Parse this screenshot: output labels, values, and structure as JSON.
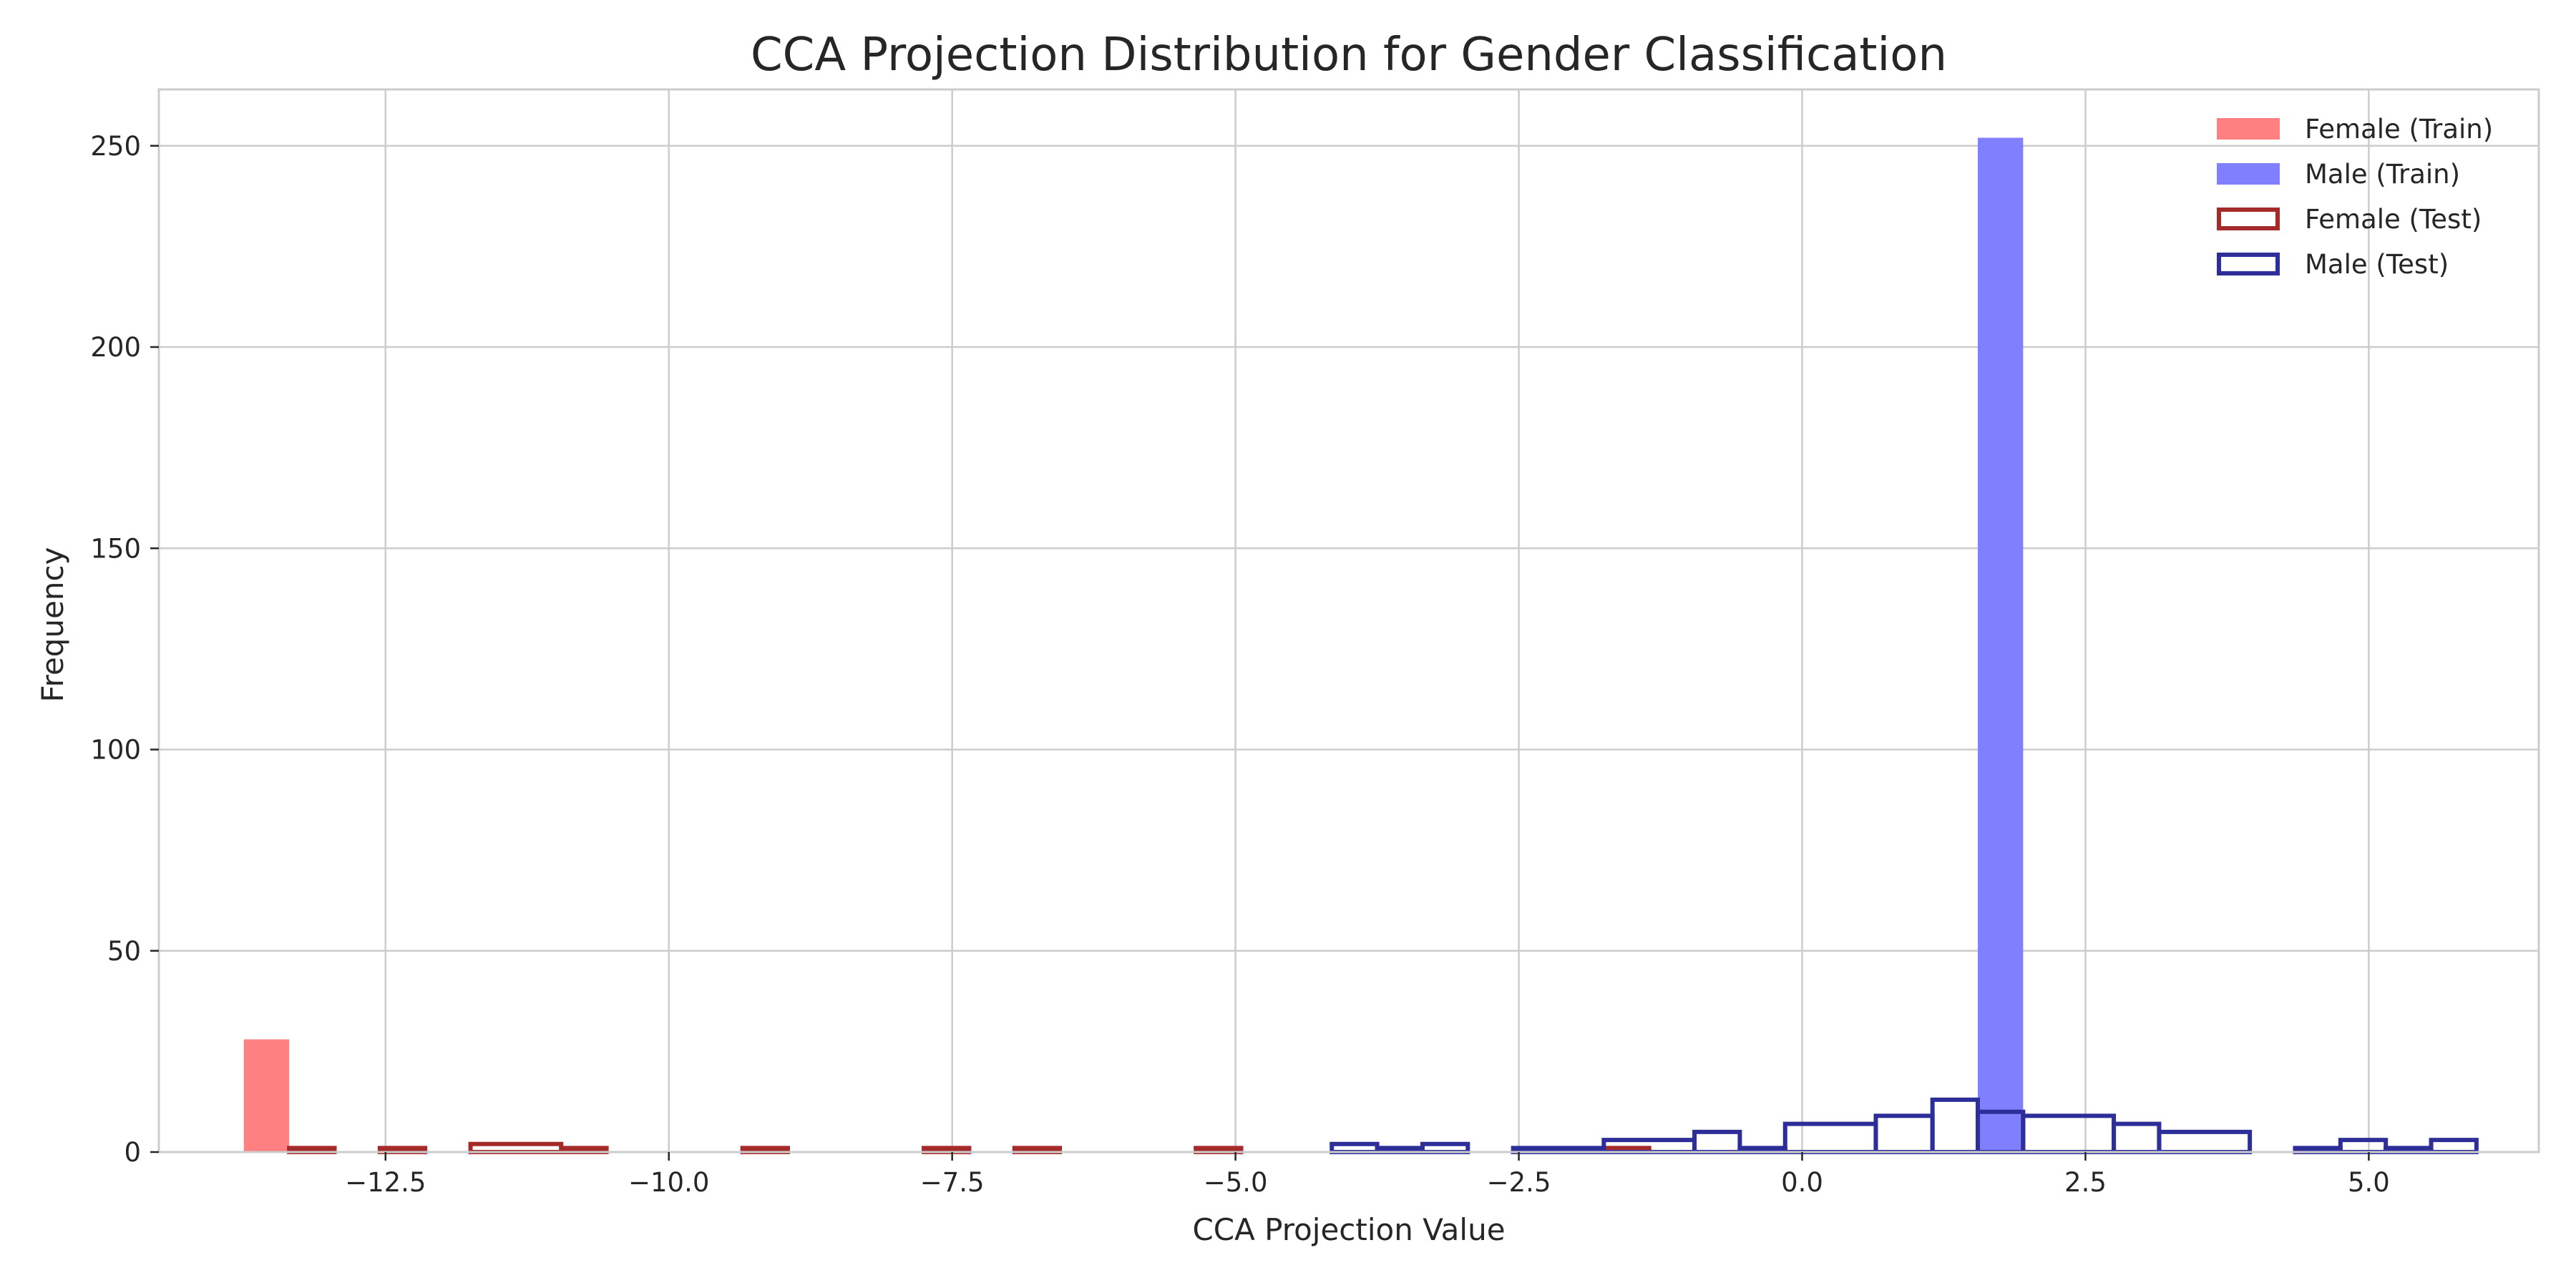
{
  "chart_data": {
    "type": "histogram",
    "title": "CCA Projection Distribution for Gender Classification",
    "xlabel": "CCA Projection Value",
    "ylabel": "Frequency",
    "xlim": [
      -14.5,
      6.5
    ],
    "ylim": [
      0,
      264
    ],
    "xticks": [
      -12.5,
      -10.0,
      -7.5,
      -5.0,
      -2.5,
      0.0,
      2.5,
      5.0
    ],
    "xtick_labels": [
      "−12.5",
      "−10.0",
      "−7.5",
      "−5.0",
      "−2.5",
      "0.0",
      "2.5",
      "5.0"
    ],
    "yticks": [
      0,
      50,
      100,
      150,
      200,
      250
    ],
    "ytick_labels": [
      "0",
      "50",
      "100",
      "150",
      "200",
      "250"
    ],
    "grid": true,
    "legend_position": "top-right",
    "legend": [
      {
        "label": "Female (Train)",
        "style": "filled",
        "color": "#ff8080"
      },
      {
        "label": "Male (Train)",
        "style": "filled",
        "color": "#8080ff"
      },
      {
        "label": "Female (Test)",
        "style": "step",
        "color": "#a52a2a"
      },
      {
        "label": "Male (Test)",
        "style": "step",
        "color": "#2e2e99"
      }
    ],
    "series": [
      {
        "name": "Female (Train)",
        "kind": "bar",
        "color": "#ff8080",
        "bins": [
          {
            "x0": -13.75,
            "x1": -13.35,
            "count": 28
          },
          {
            "x0": -1.75,
            "x1": -1.35,
            "count": 1
          }
        ]
      },
      {
        "name": "Male (Train)",
        "kind": "bar",
        "color": "#8080ff",
        "bins": [
          {
            "x0": 1.55,
            "x1": 1.95,
            "count": 252
          }
        ]
      },
      {
        "name": "Female (Test)",
        "kind": "step",
        "color": "#a52a2a",
        "bins": [
          {
            "x0": -13.35,
            "x1": -12.95,
            "count": 1
          },
          {
            "x0": -12.55,
            "x1": -12.15,
            "count": 1
          },
          {
            "x0": -11.75,
            "x1": -10.95,
            "count": 2
          },
          {
            "x0": -10.95,
            "x1": -10.55,
            "count": 1
          },
          {
            "x0": -9.35,
            "x1": -8.95,
            "count": 1
          },
          {
            "x0": -7.75,
            "x1": -7.35,
            "count": 1
          },
          {
            "x0": -6.95,
            "x1": -6.55,
            "count": 1
          },
          {
            "x0": -5.35,
            "x1": -4.95,
            "count": 1
          },
          {
            "x0": -1.75,
            "x1": -1.35,
            "count": 1
          }
        ]
      },
      {
        "name": "Male (Test)",
        "kind": "step",
        "color": "#2e2e99",
        "bins": [
          {
            "x0": -4.15,
            "x1": -3.75,
            "count": 2
          },
          {
            "x0": -3.75,
            "x1": -3.35,
            "count": 1
          },
          {
            "x0": -3.35,
            "x1": -2.95,
            "count": 2
          },
          {
            "x0": -2.55,
            "x1": -1.75,
            "count": 1
          },
          {
            "x0": -1.75,
            "x1": -0.95,
            "count": 3
          },
          {
            "x0": -0.95,
            "x1": -0.55,
            "count": 5
          },
          {
            "x0": -0.55,
            "x1": -0.15,
            "count": 1
          },
          {
            "x0": -0.15,
            "x1": 0.65,
            "count": 7
          },
          {
            "x0": 0.65,
            "x1": 1.15,
            "count": 9
          },
          {
            "x0": 1.15,
            "x1": 1.55,
            "count": 13
          },
          {
            "x0": 1.55,
            "x1": 1.95,
            "count": 10
          },
          {
            "x0": 1.95,
            "x1": 2.75,
            "count": 9
          },
          {
            "x0": 2.75,
            "x1": 3.15,
            "count": 7
          },
          {
            "x0": 3.15,
            "x1": 3.95,
            "count": 5
          },
          {
            "x0": 4.35,
            "x1": 4.75,
            "count": 1
          },
          {
            "x0": 4.75,
            "x1": 5.15,
            "count": 3
          },
          {
            "x0": 5.15,
            "x1": 5.55,
            "count": 1
          },
          {
            "x0": 5.55,
            "x1": 5.95,
            "count": 3
          }
        ]
      }
    ]
  }
}
